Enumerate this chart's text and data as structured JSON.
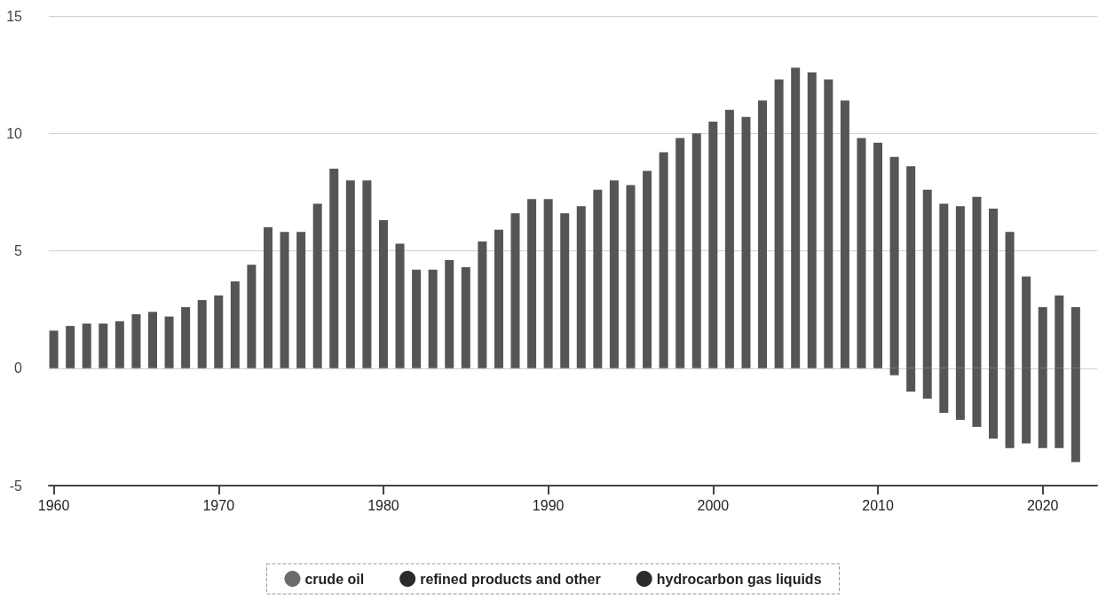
{
  "chart_data": {
    "type": "bar",
    "stacked": true,
    "x": [
      1960,
      1961,
      1962,
      1963,
      1964,
      1965,
      1966,
      1967,
      1968,
      1969,
      1970,
      1971,
      1972,
      1973,
      1974,
      1975,
      1976,
      1977,
      1978,
      1979,
      1980,
      1981,
      1982,
      1983,
      1984,
      1985,
      1986,
      1987,
      1988,
      1989,
      1990,
      1991,
      1992,
      1993,
      1994,
      1995,
      1996,
      1997,
      1998,
      1999,
      2000,
      2001,
      2002,
      2003,
      2004,
      2005,
      2006,
      2007,
      2008,
      2009,
      2010,
      2011,
      2012,
      2013,
      2014,
      2015,
      2016,
      2017,
      2018,
      2019,
      2020,
      2021,
      2022
    ],
    "series": [
      {
        "color": "#555555",
        "values": [
          1.6,
          1.8,
          1.9,
          1.9,
          2.0,
          2.3,
          2.4,
          2.2,
          2.6,
          2.9,
          3.1,
          3.7,
          4.4,
          6.0,
          5.8,
          5.8,
          7.0,
          8.5,
          8.0,
          8.0,
          6.3,
          5.3,
          4.2,
          4.2,
          4.6,
          4.3,
          5.4,
          5.9,
          6.6,
          7.2,
          7.2,
          6.6,
          6.9,
          7.6,
          8.0,
          7.8,
          8.4,
          9.2,
          9.8,
          10.0,
          10.5,
          11.0,
          10.7,
          11.4,
          12.3,
          12.8,
          12.6,
          12.3,
          11.4,
          9.8,
          9.6,
          9.0,
          8.6,
          7.6,
          7.0,
          6.9,
          7.3,
          6.8,
          5.8,
          3.9,
          2.6,
          3.1,
          2.6
        ]
      },
      {
        "color": "#555555",
        "values": [
          null,
          null,
          null,
          null,
          null,
          null,
          null,
          null,
          null,
          null,
          null,
          null,
          null,
          null,
          null,
          null,
          null,
          null,
          null,
          null,
          null,
          null,
          null,
          null,
          null,
          null,
          null,
          null,
          null,
          null,
          null,
          null,
          null,
          null,
          null,
          null,
          null,
          null,
          null,
          null,
          null,
          null,
          null,
          null,
          null,
          null,
          null,
          null,
          null,
          null,
          null,
          -0.3,
          -1.0,
          -1.3,
          -1.9,
          -2.2,
          -2.5,
          -3.0,
          -3.4,
          -3.2,
          -3.4,
          -3.4,
          -4.0
        ]
      },
      {
        "name": "crude oil",
        "color": "#6b6b6b",
        "values": [
          null,
          null,
          null,
          null,
          null,
          null,
          null,
          null,
          null,
          null,
          null,
          null,
          null,
          null,
          null,
          null,
          null,
          null,
          null,
          null,
          null,
          null,
          null,
          null,
          null,
          null,
          null,
          null,
          null,
          null,
          null,
          null,
          null,
          null,
          null,
          null,
          null,
          null,
          null,
          null,
          null,
          null,
          null,
          null,
          null,
          null,
          null,
          null,
          null,
          null,
          null,
          null,
          null,
          null,
          null,
          null,
          null,
          null,
          null,
          null,
          null,
          null,
          null
        ]
      },
      {
        "name": "refined products and other",
        "color": "#2b2b2b",
        "values": [
          null,
          null,
          null,
          null,
          null,
          null,
          null,
          null,
          null,
          null,
          null,
          null,
          null,
          null,
          null,
          null,
          null,
          null,
          null,
          null,
          null,
          null,
          null,
          null,
          null,
          null,
          null,
          null,
          null,
          null,
          null,
          null,
          null,
          null,
          null,
          null,
          null,
          null,
          null,
          null,
          null,
          null,
          null,
          null,
          null,
          null,
          null,
          null,
          null,
          null,
          null,
          null,
          null,
          null,
          null,
          null,
          null,
          null,
          null,
          null,
          null,
          null,
          null
        ]
      },
      {
        "name": "hydrocarbon gas liquids",
        "color": "#2b2b2b",
        "values": [
          null,
          null,
          null,
          null,
          null,
          null,
          null,
          null,
          null,
          null,
          null,
          null,
          null,
          null,
          null,
          null,
          null,
          null,
          null,
          null,
          null,
          null,
          null,
          null,
          null,
          null,
          null,
          null,
          null,
          null,
          null,
          null,
          null,
          null,
          null,
          null,
          null,
          null,
          null,
          null,
          null,
          null,
          null,
          null,
          null,
          null,
          null,
          null,
          null,
          null,
          null,
          null,
          null,
          null,
          null,
          null,
          null,
          null,
          null,
          null,
          null,
          null,
          null
        ]
      }
    ],
    "xlim": [
      1959.7,
      2023.3
    ],
    "xticks": [
      1960,
      1970,
      1980,
      1990,
      2000,
      2010,
      2020
    ],
    "ylim": [
      -5,
      15
    ],
    "yticks": [
      -5,
      0,
      5,
      10,
      15
    ],
    "grid": "y",
    "legend": "bottom"
  }
}
